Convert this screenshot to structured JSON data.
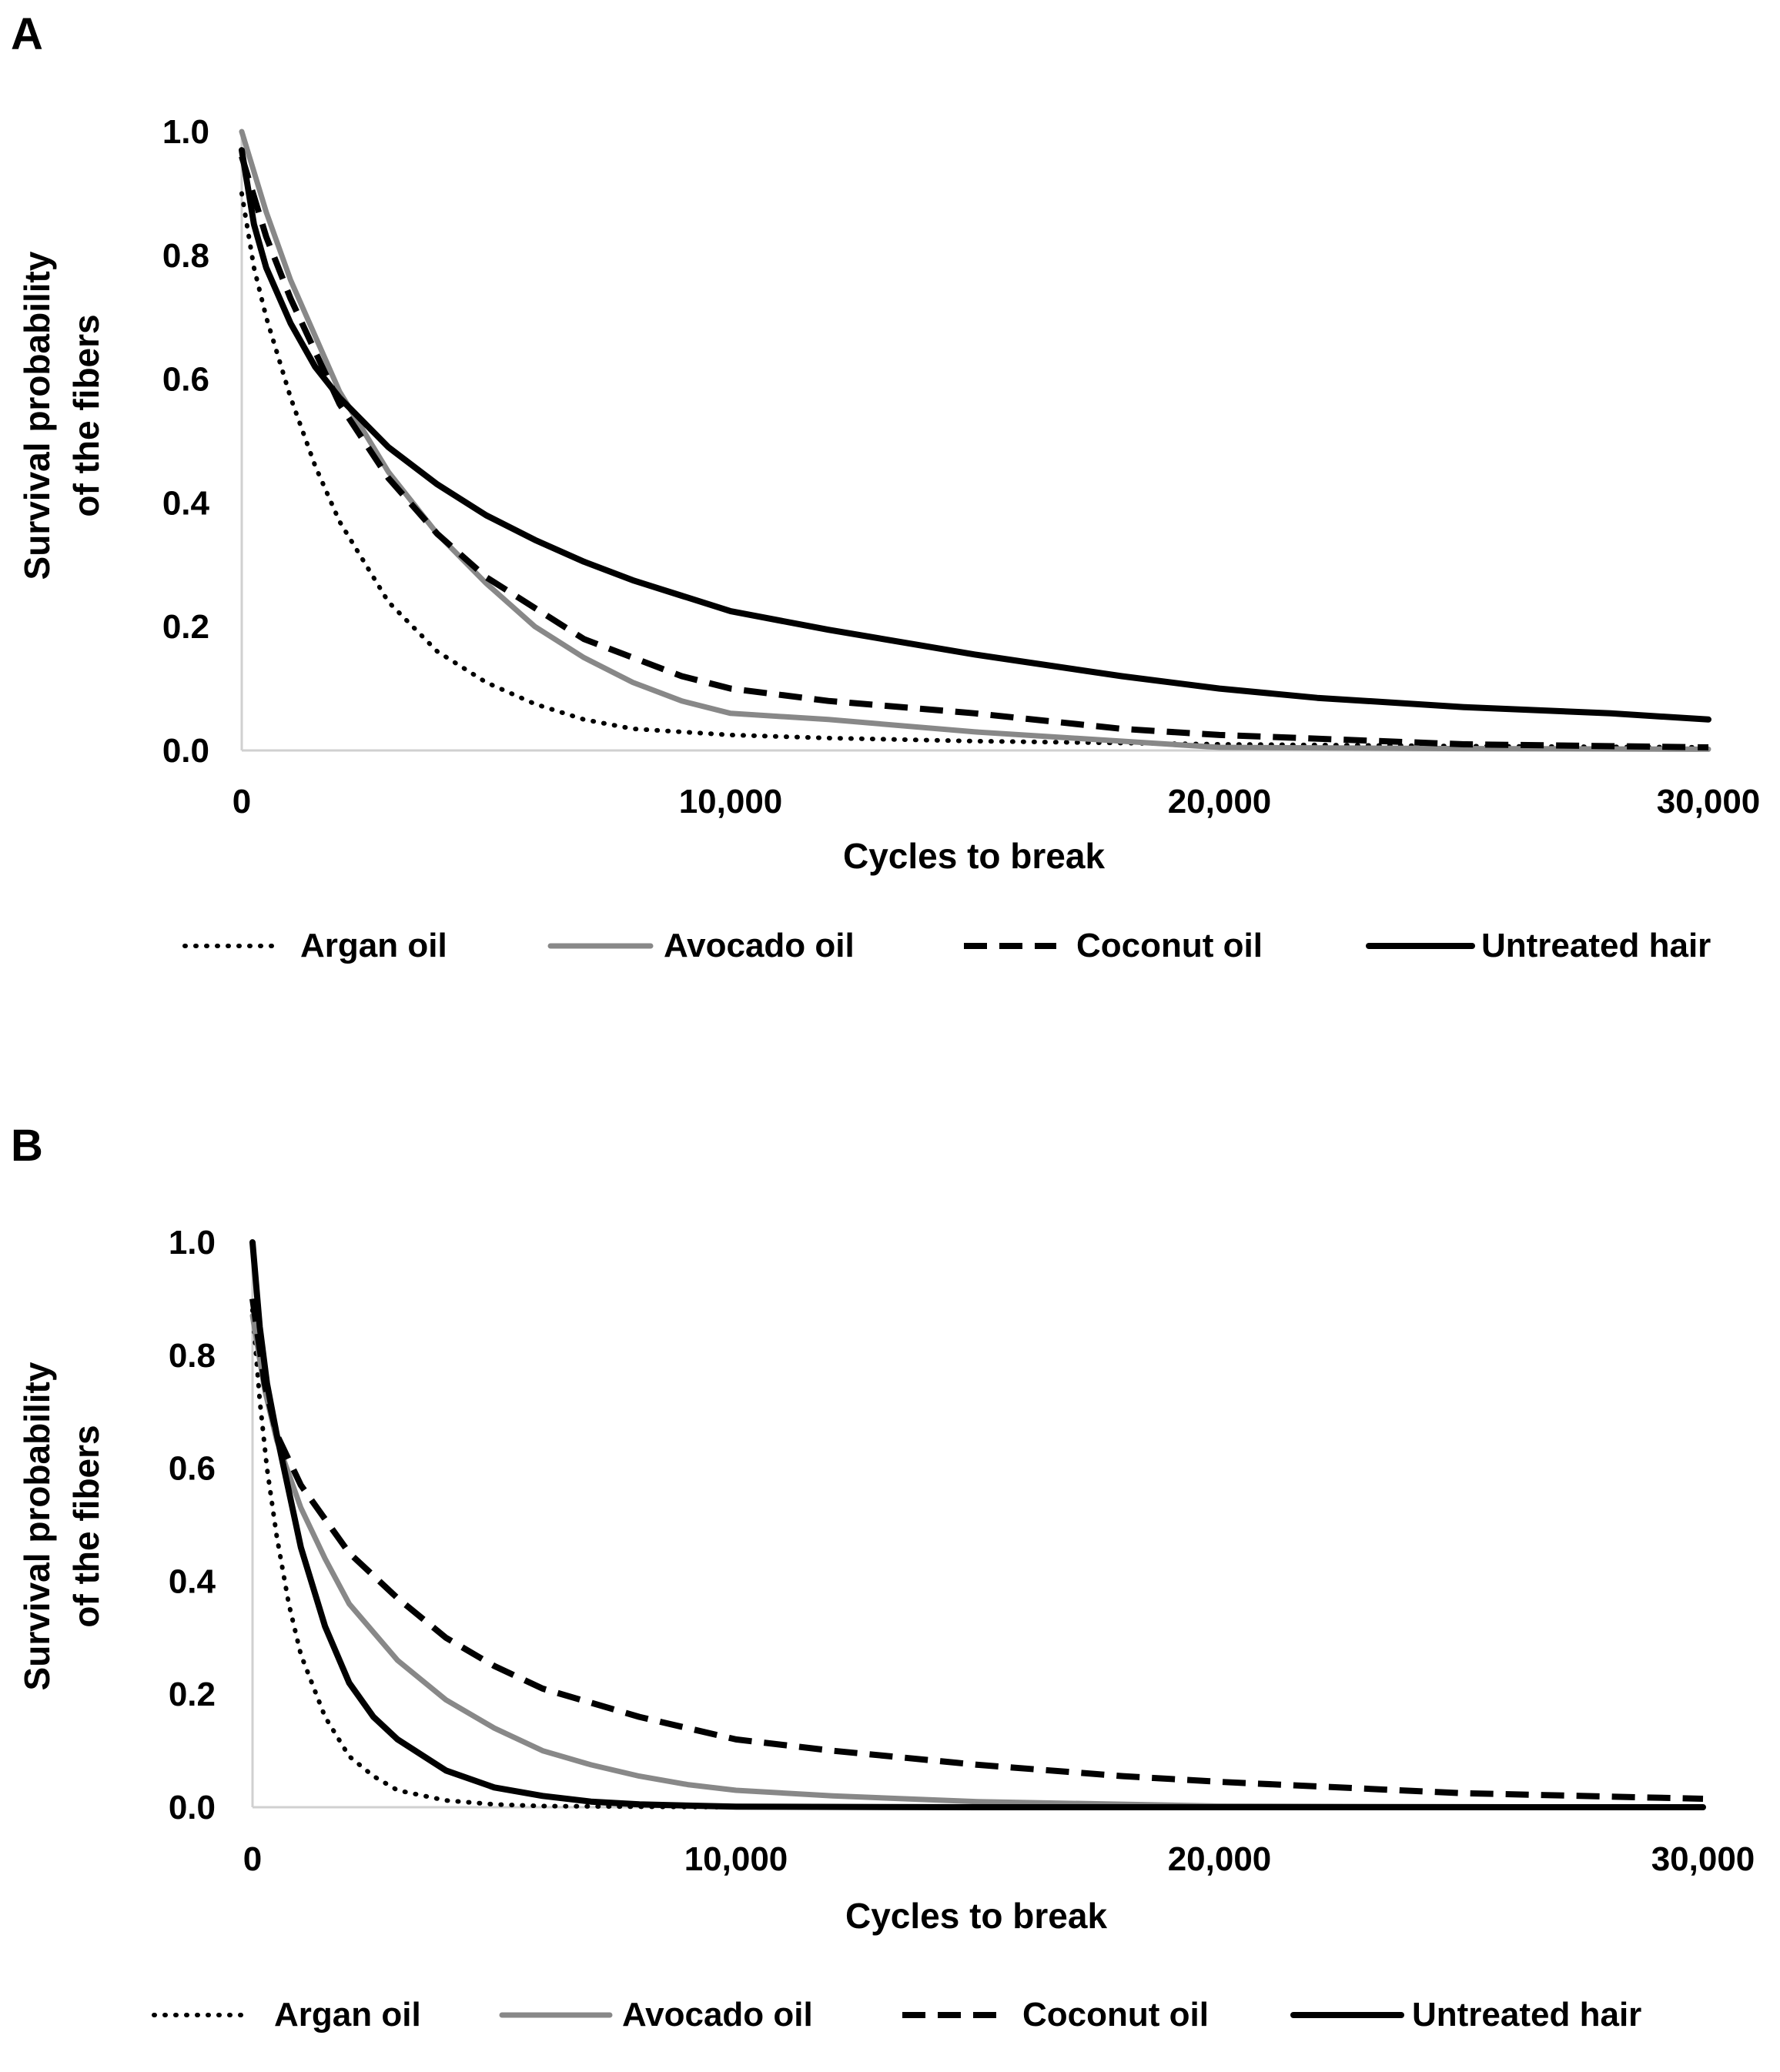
{
  "chart_data": [
    {
      "type": "line",
      "panel_label": "A",
      "xlabel": "Cycles to break",
      "ylabel_lines": [
        "Survival probability",
        "of the fibers"
      ],
      "xlim": [
        0,
        30000
      ],
      "ylim": [
        0,
        1
      ],
      "x_ticks": [
        0,
        10000,
        20000,
        30000
      ],
      "x_tick_labels": [
        "0",
        "10,000",
        "20,000",
        "30,000"
      ],
      "y_ticks": [
        0,
        0.2,
        0.4,
        0.6,
        0.8,
        1.0
      ],
      "y_tick_labels": [
        "0.0",
        "0.2",
        "0.4",
        "0.6",
        "0.8",
        "1.0"
      ],
      "grid": false,
      "legend_position": "bottom",
      "series": [
        {
          "name": "Argan oil",
          "style": "dotted",
          "color": "#000000",
          "x": [
            0,
            250,
            500,
            1000,
            1500,
            2000,
            3000,
            4000,
            5000,
            6000,
            7000,
            8000,
            10000,
            12000,
            15000,
            20000,
            25000,
            30000
          ],
          "y": [
            0.9,
            0.78,
            0.7,
            0.57,
            0.46,
            0.37,
            0.24,
            0.16,
            0.11,
            0.075,
            0.05,
            0.035,
            0.025,
            0.02,
            0.015,
            0.01,
            0.007,
            0.005
          ]
        },
        {
          "name": "Avocado oil",
          "style": "solid",
          "color": "#888888",
          "x": [
            0,
            500,
            1000,
            2000,
            3000,
            4000,
            5000,
            6000,
            7000,
            8000,
            9000,
            10000,
            12000,
            15000,
            20000,
            25000,
            30000
          ],
          "y": [
            1.0,
            0.87,
            0.76,
            0.58,
            0.45,
            0.35,
            0.27,
            0.2,
            0.15,
            0.11,
            0.08,
            0.06,
            0.05,
            0.03,
            0.005,
            0.003,
            0.002
          ]
        },
        {
          "name": "Coconut oil",
          "style": "dashed",
          "color": "#000000",
          "x": [
            0,
            500,
            1000,
            2000,
            3000,
            4000,
            5000,
            6000,
            7000,
            8000,
            9000,
            10000,
            12000,
            15000,
            18000,
            20000,
            25000,
            30000
          ],
          "y": [
            0.96,
            0.83,
            0.73,
            0.56,
            0.44,
            0.35,
            0.28,
            0.23,
            0.18,
            0.15,
            0.12,
            0.1,
            0.08,
            0.06,
            0.035,
            0.025,
            0.01,
            0.005
          ]
        },
        {
          "name": "Untreated hair",
          "style": "solid",
          "color": "#000000",
          "x": [
            0,
            250,
            500,
            1000,
            1500,
            2000,
            3000,
            4000,
            5000,
            6000,
            7000,
            8000,
            9000,
            10000,
            12000,
            15000,
            18000,
            20000,
            22000,
            25000,
            28000,
            30000
          ],
          "y": [
            0.97,
            0.85,
            0.78,
            0.69,
            0.62,
            0.57,
            0.49,
            0.43,
            0.38,
            0.34,
            0.305,
            0.275,
            0.25,
            0.225,
            0.195,
            0.155,
            0.12,
            0.1,
            0.085,
            0.07,
            0.06,
            0.05
          ]
        }
      ]
    },
    {
      "type": "line",
      "panel_label": "B",
      "xlabel": "Cycles to break",
      "ylabel_lines": [
        "Survival probability",
        "of the fibers"
      ],
      "xlim": [
        0,
        30000
      ],
      "ylim": [
        0,
        1
      ],
      "x_ticks": [
        0,
        10000,
        20000,
        30000
      ],
      "x_tick_labels": [
        "0",
        "10,000",
        "20,000",
        "30,000"
      ],
      "y_ticks": [
        0,
        0.2,
        0.4,
        0.6,
        0.8,
        1.0
      ],
      "y_tick_labels": [
        "0.0",
        "0.2",
        "0.4",
        "0.6",
        "0.8",
        "1.0"
      ],
      "grid": false,
      "legend_position": "bottom",
      "series": [
        {
          "name": "Argan oil",
          "style": "dotted",
          "color": "#000000",
          "x": [
            0,
            150,
            300,
            500,
            750,
            1000,
            1500,
            2000,
            2500,
            3000,
            4000,
            5000,
            6000,
            8000,
            10000,
            15000,
            20000,
            30000
          ],
          "y": [
            0.88,
            0.72,
            0.6,
            0.48,
            0.36,
            0.27,
            0.16,
            0.09,
            0.055,
            0.03,
            0.012,
            0.005,
            0.002,
            0.001,
            0.0,
            0.0,
            0.0,
            0.0
          ]
        },
        {
          "name": "Avocado oil",
          "style": "solid",
          "color": "#888888",
          "x": [
            0,
            250,
            500,
            1000,
            1500,
            2000,
            3000,
            4000,
            5000,
            6000,
            7000,
            8000,
            9000,
            10000,
            12000,
            15000,
            20000,
            30000
          ],
          "y": [
            0.87,
            0.74,
            0.65,
            0.53,
            0.44,
            0.36,
            0.26,
            0.19,
            0.14,
            0.1,
            0.075,
            0.055,
            0.04,
            0.03,
            0.02,
            0.01,
            0.002,
            0.0
          ]
        },
        {
          "name": "Coconut oil",
          "style": "dashed",
          "color": "#000000",
          "x": [
            0,
            250,
            500,
            1000,
            2000,
            3000,
            4000,
            5000,
            6000,
            8000,
            10000,
            12000,
            15000,
            18000,
            20000,
            25000,
            30000
          ],
          "y": [
            0.9,
            0.75,
            0.66,
            0.57,
            0.45,
            0.37,
            0.3,
            0.25,
            0.21,
            0.16,
            0.12,
            0.1,
            0.075,
            0.055,
            0.045,
            0.025,
            0.015
          ]
        },
        {
          "name": "Untreated hair",
          "style": "solid",
          "color": "#000000",
          "x": [
            0,
            150,
            300,
            500,
            750,
            1000,
            1500,
            2000,
            2500,
            3000,
            4000,
            5000,
            6000,
            7000,
            8000,
            10000,
            15000,
            20000,
            30000
          ],
          "y": [
            1.0,
            0.85,
            0.75,
            0.66,
            0.56,
            0.46,
            0.32,
            0.22,
            0.16,
            0.12,
            0.065,
            0.035,
            0.02,
            0.01,
            0.005,
            0.001,
            0.0,
            0.0,
            0.0
          ]
        }
      ]
    }
  ]
}
